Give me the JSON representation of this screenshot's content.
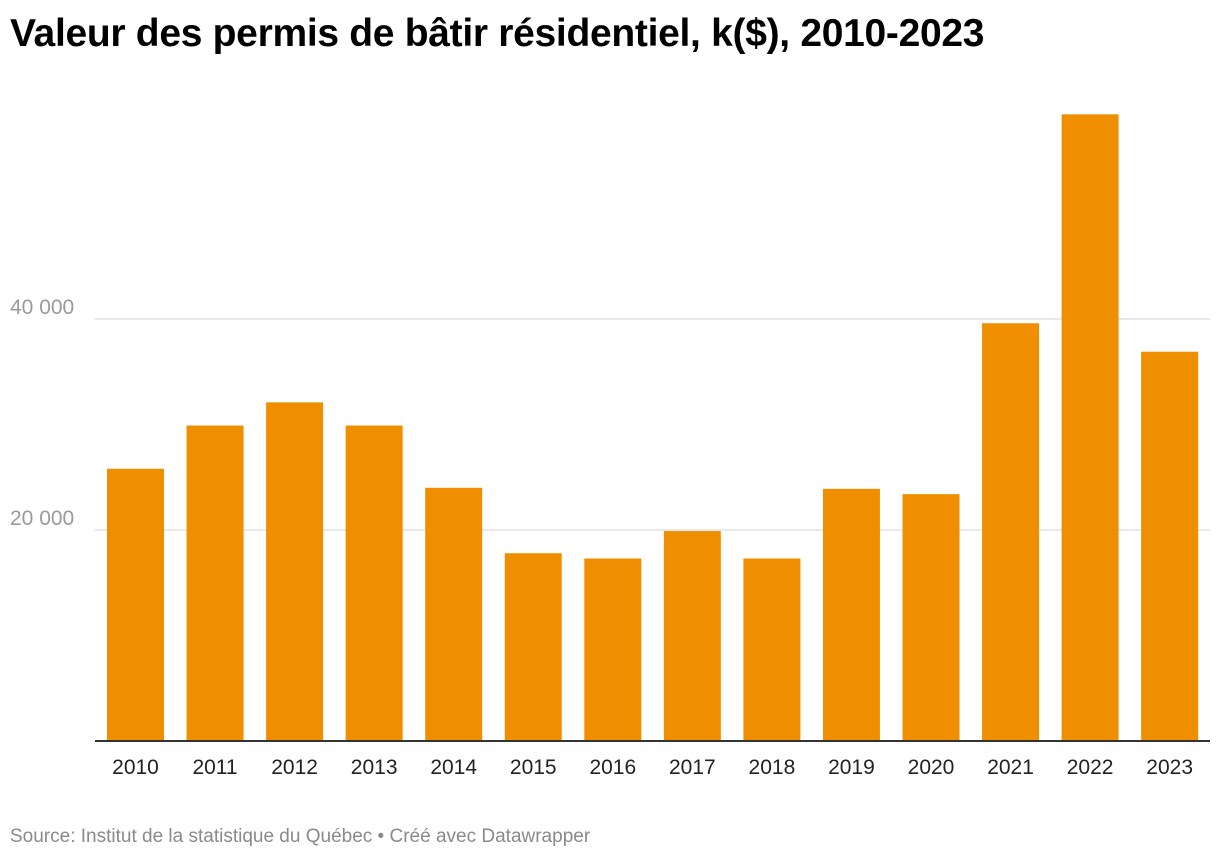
{
  "title": "Valeur des permis de bâtir résidentiel, k($), 2010-2023",
  "footer": {
    "source": "Source: Institut de la statistique du Québec",
    "separator": " • ",
    "credit": "Créé avec Datawrapper"
  },
  "chart_data": {
    "type": "bar",
    "title": "Valeur des permis de bâtir résidentiel, k($), 2010-2023",
    "xlabel": "",
    "ylabel": "",
    "categories": [
      "2010",
      "2011",
      "2012",
      "2013",
      "2014",
      "2015",
      "2016",
      "2017",
      "2018",
      "2019",
      "2020",
      "2021",
      "2022",
      "2023"
    ],
    "values": [
      25800,
      29900,
      32100,
      29900,
      24000,
      17800,
      17300,
      19900,
      17300,
      23900,
      23400,
      39600,
      59400,
      36900
    ],
    "y_ticks": [
      20000,
      40000
    ],
    "y_tick_labels": [
      "20 000",
      "40 000"
    ],
    "ylim": [
      0,
      60000
    ],
    "grid": true,
    "legend": "none",
    "bar_color": "#ef8f00"
  }
}
